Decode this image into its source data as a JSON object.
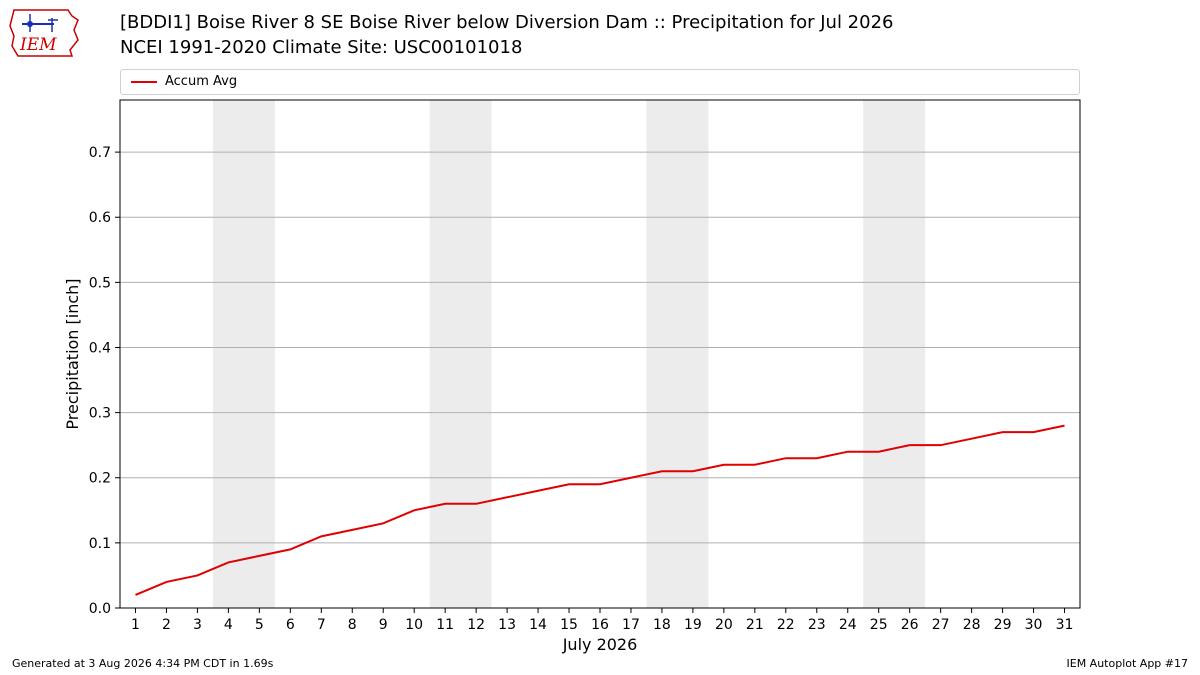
{
  "header": {
    "title_line1": "[BDDI1] Boise River 8 SE Boise River below Diversion Dam :: Precipitation for Jul 2026",
    "title_line2": "NCEI 1991-2020 Climate Site: USC00101018"
  },
  "logo": {
    "text": "IEM",
    "color": "#d00000"
  },
  "legend": {
    "label": "Accum Avg",
    "placement": "top",
    "color": "#e00000"
  },
  "chart_data": {
    "type": "line",
    "xlabel": "July 2026",
    "ylabel": "Precipitation [inch]",
    "x": [
      1,
      2,
      3,
      4,
      5,
      6,
      7,
      8,
      9,
      10,
      11,
      12,
      13,
      14,
      15,
      16,
      17,
      18,
      19,
      20,
      21,
      22,
      23,
      24,
      25,
      26,
      27,
      28,
      29,
      30,
      31
    ],
    "xlim": [
      0.5,
      31.5
    ],
    "ylim": [
      0.0,
      0.78
    ],
    "yticks": [
      0.0,
      0.1,
      0.2,
      0.3,
      0.4,
      0.5,
      0.6,
      0.7
    ],
    "ytick_labels": [
      "0.0",
      "0.1",
      "0.2",
      "0.3",
      "0.4",
      "0.5",
      "0.6",
      "0.7"
    ],
    "grid": "y",
    "weekend_shading": [
      [
        4,
        5
      ],
      [
        11,
        12
      ],
      [
        18,
        19
      ],
      [
        25,
        26
      ]
    ],
    "shade_color": "#ececec",
    "series": [
      {
        "name": "Accum Avg",
        "color": "#e00000",
        "values": [
          0.02,
          0.04,
          0.05,
          0.07,
          0.08,
          0.09,
          0.11,
          0.12,
          0.13,
          0.15,
          0.16,
          0.16,
          0.17,
          0.18,
          0.19,
          0.19,
          0.2,
          0.21,
          0.21,
          0.22,
          0.22,
          0.23,
          0.23,
          0.24,
          0.24,
          0.25,
          0.25,
          0.26,
          0.27,
          0.27,
          0.28
        ]
      }
    ]
  },
  "footer": {
    "left": "Generated at 3 Aug 2026 4:34 PM CDT in 1.69s",
    "right": "IEM Autoplot App #17"
  }
}
